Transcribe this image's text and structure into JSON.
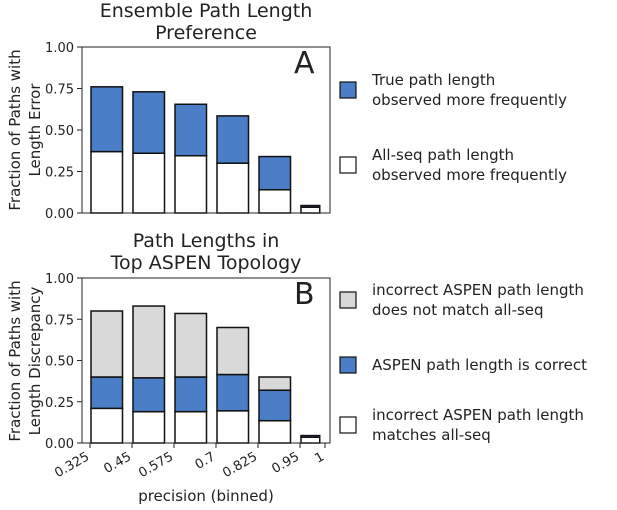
{
  "chart_data": [
    {
      "type": "bar",
      "stacked": true,
      "title": "Ensemble Path Length\nPreference",
      "panel_label": "A",
      "ylabel": "Fraction of Paths with\nLength Error",
      "ylim": [
        0,
        1
      ],
      "yticks": [
        {
          "value": 0,
          "label": "0.00"
        },
        {
          "value": 0.25,
          "label": "0.25"
        },
        {
          "value": 0.5,
          "label": "0.50"
        },
        {
          "value": 0.75,
          "label": "0.75"
        },
        {
          "value": 1,
          "label": "1.00"
        }
      ],
      "series": [
        {
          "name": "All-seq path length\nobserved more frequently",
          "color": "#ffffff",
          "values": [
            0.37,
            0.36,
            0.345,
            0.3,
            0.14,
            0.035
          ]
        },
        {
          "name": "True path length\nobserved more frequently",
          "color": "#4a7fc8",
          "values": [
            0.39,
            0.37,
            0.31,
            0.285,
            0.2,
            0.01
          ]
        }
      ]
    },
    {
      "type": "bar",
      "stacked": true,
      "title": "Path Lengths in\nTop ASPEN Topology",
      "panel_label": "B",
      "ylabel": "Fraction of Paths with\nLength Discrepancy",
      "xlabel": "precision (binned)",
      "ylim": [
        0,
        1
      ],
      "yticks": [
        {
          "value": 0,
          "label": "0.00"
        },
        {
          "value": 0.25,
          "label": "0.25"
        },
        {
          "value": 0.5,
          "label": "0.50"
        },
        {
          "value": 0.75,
          "label": "0.75"
        },
        {
          "value": 1,
          "label": "1.00"
        }
      ],
      "xticks": [
        0.325,
        0.45,
        0.575,
        0.7,
        0.825,
        0.95,
        1
      ],
      "series": [
        {
          "name": "incorrect ASPEN path length\nmatches all-seq",
          "color": "#ffffff",
          "values": [
            0.21,
            0.19,
            0.19,
            0.195,
            0.135,
            0.035
          ]
        },
        {
          "name": "ASPEN path length is correct",
          "color": "#4a7fc8",
          "values": [
            0.19,
            0.205,
            0.21,
            0.22,
            0.185,
            0.01
          ]
        },
        {
          "name": "incorrect ASPEN path length\ndoes not match all-seq",
          "color": "#d9d9d9",
          "values": [
            0.4,
            0.435,
            0.385,
            0.285,
            0.08,
            0
          ]
        }
      ]
    }
  ]
}
